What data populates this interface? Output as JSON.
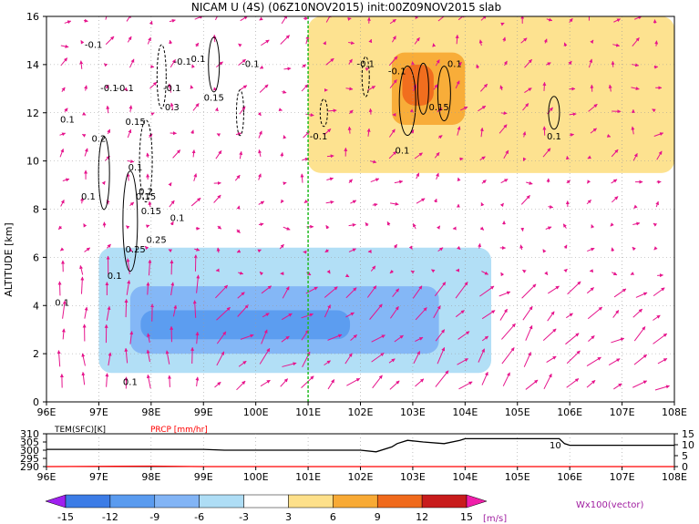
{
  "title": "NICAM U (4S) (06Z10NOV2015) init:00Z09NOV2015 slab",
  "chart_data": [
    {
      "type": "heatmap",
      "title": "NICAM U (4S) (06Z10NOV2015) init:00Z09NOV2015 slab",
      "ylabel": "ALTITUDE [km]",
      "x_ticks": [
        "96E",
        "97E",
        "98E",
        "99E",
        "100E",
        "101E",
        "102E",
        "103E",
        "104E",
        "105E",
        "106E",
        "107E",
        "108E"
      ],
      "x_values": [
        96,
        97,
        98,
        99,
        100,
        101,
        102,
        103,
        104,
        105,
        106,
        107,
        108
      ],
      "y_ticks": [
        "0",
        "2",
        "4",
        "6",
        "8",
        "10",
        "12",
        "14",
        "16"
      ],
      "y_values": [
        0,
        2,
        4,
        6,
        8,
        10,
        12,
        14,
        16
      ],
      "xlim": [
        96,
        108
      ],
      "ylim": [
        0,
        16
      ],
      "grid": true,
      "marker_line_lon": 101,
      "shading_regions": [
        {
          "level": -12,
          "x": [
            97.8,
            101.8
          ],
          "y": [
            2.6,
            3.8
          ]
        },
        {
          "level": -9,
          "x": [
            97.6,
            103.5
          ],
          "y": [
            2.0,
            4.8
          ]
        },
        {
          "level": -6,
          "x": [
            97.0,
            104.5
          ],
          "y": [
            1.2,
            6.4
          ]
        },
        {
          "level": -3,
          "x": [
            96.0,
            108.0
          ],
          "y": [
            0.5,
            7.5
          ]
        },
        {
          "level": 3,
          "x": [
            101.0,
            108.0
          ],
          "y": [
            9.5,
            16.0
          ]
        },
        {
          "level": 6,
          "x": [
            102.6,
            104.0
          ],
          "y": [
            11.5,
            14.5
          ]
        },
        {
          "level": 9,
          "x": [
            102.8,
            103.4
          ],
          "y": [
            12.3,
            14.0
          ]
        }
      ],
      "contour_labels": [
        "-0.1",
        "-0.1",
        "-0.1",
        "-0.1",
        "0.1",
        "-0.1",
        "-0.1",
        "-0.1",
        "0.15",
        "0.1",
        "0.15",
        "0.3",
        "0.1",
        "0.2",
        "0.1",
        "0.15",
        "0.2",
        "0.15",
        "0.25",
        "0.1",
        "0.25",
        "-0.1",
        "0.1",
        "0.1",
        "0.1",
        "-0.1",
        "0.1",
        "0.1",
        "0.15",
        "0.1"
      ]
    },
    {
      "type": "line",
      "title": "",
      "series": [
        {
          "name": "TEM(SFC)[K]",
          "color": "#000000",
          "x": [
            96,
            97,
            98,
            99,
            99.4,
            100,
            101,
            102,
            102.3,
            102.6,
            102.7,
            102.9,
            103.2,
            103.6,
            103.9,
            104.0,
            105,
            105.8,
            105.9,
            106,
            107,
            108
          ],
          "y": [
            300.5,
            300.5,
            300.5,
            300.5,
            300,
            300,
            300,
            300,
            299,
            302,
            304,
            306,
            305,
            304,
            306,
            307,
            307,
            307,
            304,
            303,
            303,
            303
          ]
        },
        {
          "name": "PRCP [mm/hr]",
          "color": "#ff0000",
          "x": [
            96,
            97,
            98,
            99,
            100,
            101,
            102,
            103,
            104,
            105,
            106,
            107,
            108
          ],
          "y": [
            0,
            0.1,
            0.2,
            0,
            0,
            0,
            0,
            0,
            0,
            0,
            0,
            0,
            0
          ]
        }
      ],
      "legend": [
        "TEM(SFC)[K]",
        "PRCP [mm/hr]"
      ],
      "left_ticks": [
        "310",
        "305",
        "300",
        "295",
        "290"
      ],
      "right_ticks": [
        "15",
        "10",
        "5",
        "0"
      ],
      "x_ticks": [
        "96E",
        "97E",
        "98E",
        "99E",
        "100E",
        "101E",
        "102E",
        "103E",
        "104E",
        "105E",
        "106E",
        "107E",
        "108E"
      ],
      "ylim_left": [
        290,
        310
      ],
      "ylim_right": [
        0,
        15
      ],
      "annotations": [
        "10"
      ]
    }
  ],
  "colorbar": {
    "labels": [
      "-15",
      "-12",
      "-9",
      "-6",
      "-3",
      "3",
      "6",
      "9",
      "12",
      "15"
    ],
    "colors": [
      "#a020f0",
      "#3c7ce6",
      "#5a9bef",
      "#82b4f5",
      "#aeddf5",
      "#ffffff",
      "#fde08a",
      "#f8aa35",
      "#f06a1c",
      "#c81c1c",
      "#f01eaa"
    ],
    "unit": "[m/s]"
  },
  "vector_label": "Wx100(vector)",
  "colors": {
    "vector": "#e6148c",
    "marker_line": "#22bb22",
    "axis": "#000000",
    "grid": "#9a9a9a"
  }
}
